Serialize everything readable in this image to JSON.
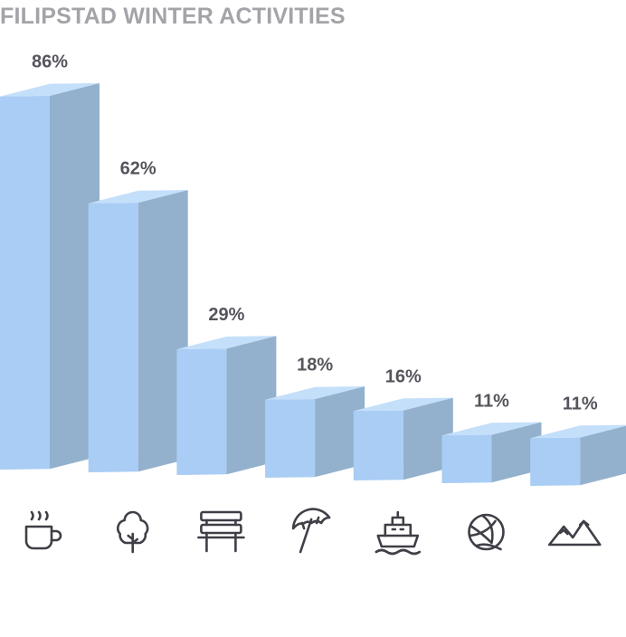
{
  "title": "FILIPSTAD WINTER ACTIVITIES",
  "colors": {
    "front": "#a9cdf4",
    "side": "#93b1cd",
    "top": "#c4dffa",
    "label": "#55555d",
    "icon": "#3f3f47",
    "title": "#a3a3a8"
  },
  "chart_data": {
    "type": "bar",
    "title": "FILIPSTAD WINTER ACTIVITIES",
    "xlabel": "",
    "ylabel": "",
    "ylim": [
      0,
      100
    ],
    "grid": false,
    "legend": "none",
    "categories": [
      "cafe",
      "forest",
      "bench",
      "beach",
      "boat",
      "volleyball",
      "mountains"
    ],
    "icons": [
      "coffee-cup-icon",
      "tree-icon",
      "park-bench-icon",
      "beach-umbrella-icon",
      "ship-icon",
      "volleyball-icon",
      "mountains-icon"
    ],
    "values": [
      86,
      62,
      29,
      18,
      16,
      11,
      11
    ],
    "labels": [
      "86%",
      "62%",
      "29%",
      "18%",
      "16%",
      "11%",
      "11%"
    ]
  }
}
